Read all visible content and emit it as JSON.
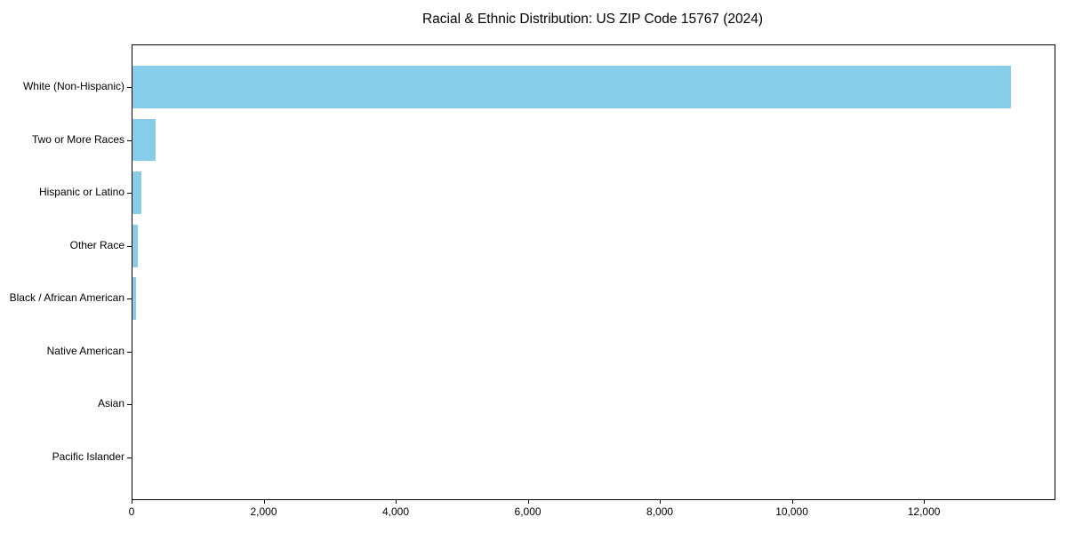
{
  "chart_data": {
    "type": "bar",
    "orientation": "horizontal",
    "title": "Racial & Ethnic Distribution: US ZIP Code 15767 (2024)",
    "categories": [
      "White (Non-Hispanic)",
      "Two or More Races",
      "Hispanic or Latino",
      "Other Race",
      "Black / African American",
      "Native American",
      "Asian",
      "Pacific Islander"
    ],
    "values": [
      13300,
      350,
      130,
      77,
      60,
      0,
      0,
      0
    ],
    "xlabel": "",
    "ylabel": "",
    "xlim": [
      0,
      13965
    ],
    "xticks": [
      0,
      2000,
      4000,
      6000,
      8000,
      10000,
      12000
    ],
    "xtick_labels": [
      "0",
      "2,000",
      "4,000",
      "6,000",
      "8,000",
      "10,000",
      "12,000"
    ],
    "bar_color": "#87CEEB",
    "spine_color": "#000000",
    "text_color": "#000000",
    "background_color": "#FFFFFF",
    "grid": false,
    "legend": false,
    "bar_height_fraction": 0.8
  }
}
